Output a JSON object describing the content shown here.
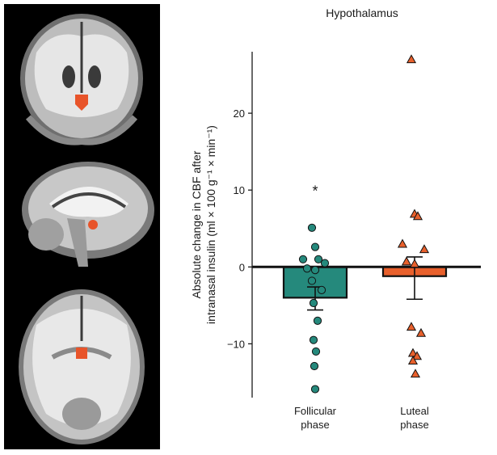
{
  "brain_views": [
    {
      "view": "coronal",
      "highlight": "hypothalamus"
    },
    {
      "view": "sagittal",
      "highlight": "hypothalamus"
    },
    {
      "view": "axial",
      "highlight": "hypothalamus"
    }
  ],
  "colors": {
    "follicular": "#25897c",
    "luteal": "#e8602c",
    "highlight": "#e8542a"
  },
  "chart_data": {
    "type": "bar",
    "title": "Hypothalamus",
    "ylabel_line1": "Absolute change in CBF after",
    "ylabel_line2": "intranasal insulin (ml × 100 g⁻¹ × min⁻¹)",
    "ylim": [
      -17,
      28
    ],
    "yticks": [
      20,
      10,
      0,
      -10
    ],
    "ytick_labels": [
      "20",
      "10",
      "0",
      "−10"
    ],
    "categories": [
      {
        "line1": "Follicular",
        "line2": "phase"
      },
      {
        "line1": "Luteal",
        "line2": "phase"
      }
    ],
    "series": [
      {
        "mean": -4.0,
        "sem_low": -5.6,
        "sem_high": -2.6,
        "marker": "circle",
        "points": [
          5.1,
          2.6,
          1.0,
          1.0,
          0.5,
          -0.2,
          -0.4,
          -1.8,
          -3.0,
          -4.7,
          -7.0,
          -9.5,
          -11.0,
          -12.9,
          -15.9
        ],
        "annotation": "*",
        "annotation_y": 10.3
      },
      {
        "mean": -1.2,
        "sem_low": -4.2,
        "sem_high": 1.3,
        "marker": "triangle",
        "points": [
          27.0,
          6.9,
          6.6,
          3.0,
          2.3,
          0.7,
          0.4,
          -7.8,
          -8.6,
          -11.2,
          -11.6,
          -12.2,
          -13.9
        ],
        "annotation": "",
        "annotation_y": null
      }
    ]
  }
}
